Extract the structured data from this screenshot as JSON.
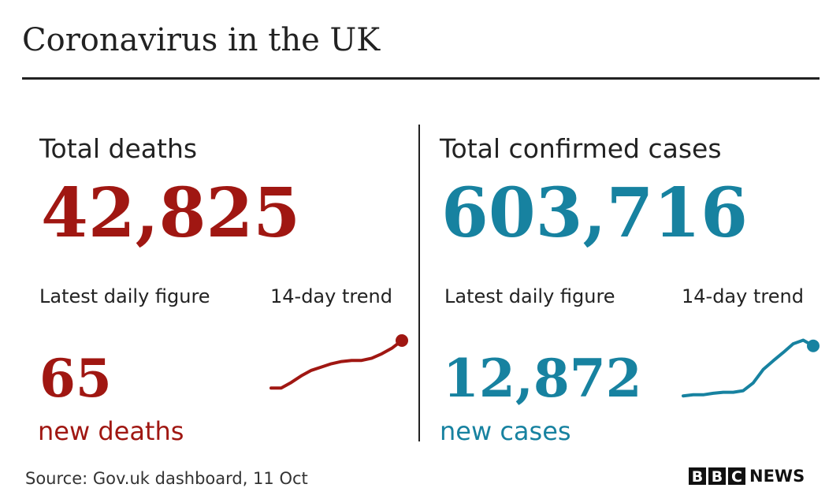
{
  "title": "Coronavirus in the UK",
  "panels": [
    {
      "heading": "Total deaths",
      "total": "42,825",
      "daily_label": "Latest daily figure",
      "daily": "65",
      "daily_unit": "new deaths",
      "trend_label": "14-day trend"
    },
    {
      "heading": "Total confirmed cases",
      "total": "603,716",
      "daily_label": "Latest daily figure",
      "daily": "12,872",
      "daily_unit": "new cases",
      "trend_label": "14-day trend"
    }
  ],
  "chart_data": [
    {
      "type": "line",
      "color": "#a01712",
      "values": [
        22,
        22,
        27,
        33,
        38,
        41,
        44,
        46,
        47,
        47,
        49,
        53,
        58,
        65
      ],
      "ylim": [
        15,
        70
      ]
    },
    {
      "type": "line",
      "color": "#1782a0",
      "values": [
        4200,
        4400,
        4400,
        4700,
        4900,
        4900,
        5200,
        6700,
        9300,
        11000,
        12600,
        14300,
        15000,
        13900
      ],
      "ylim": [
        3000,
        16000
      ]
    }
  ],
  "source": "Source: Gov.uk dashboard, 11 Oct",
  "logo": {
    "letters": [
      "B",
      "B",
      "C"
    ],
    "word": "NEWS"
  }
}
